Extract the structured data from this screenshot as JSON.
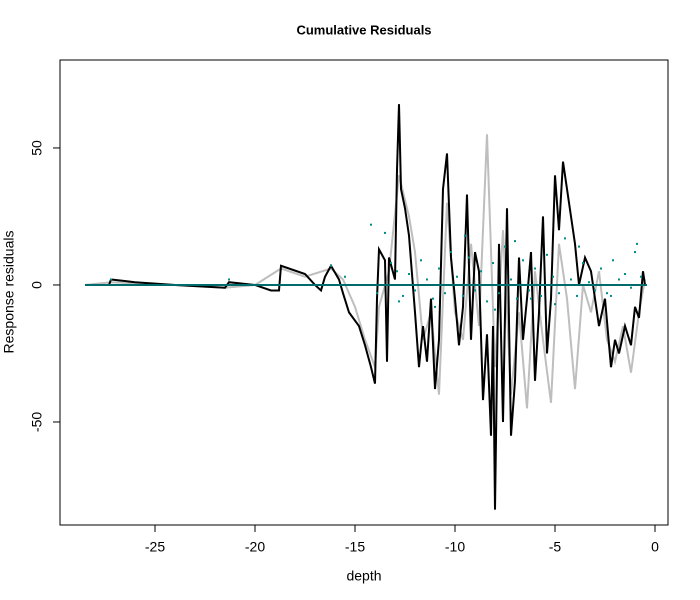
{
  "chart_data": {
    "type": "line",
    "title": "Cumulative Residuals",
    "x_label": "depth",
    "y_label": "Response  residuals",
    "xlim": [
      -29.75,
      0.65
    ],
    "ylim": [
      -87.6,
      82.1
    ],
    "xticks": [
      -25,
      -20,
      -15,
      -10,
      -5,
      0
    ],
    "yticks": [
      -50,
      0,
      50
    ],
    "hline": 0,
    "hline_color": "#006b6b",
    "series": [
      {
        "style": "line",
        "color": "#bebebe",
        "x": [
          -28.5,
          -27.2,
          -24,
          -21.5,
          -20,
          -18.7,
          -17.5,
          -16.2,
          -15.6,
          -15,
          -14.5,
          -14,
          -13.8,
          -13.3,
          -12.8,
          -12.3,
          -12,
          -11.6,
          -11.2,
          -10.8,
          -10.4,
          -10,
          -9.6,
          -9.2,
          -8.8,
          -8.4,
          -8,
          -7.6,
          -7.2,
          -6.8,
          -6.4,
          -6,
          -5.6,
          -5.2,
          -4.8,
          -4.4,
          -4,
          -3.6,
          -3.2,
          -2.8,
          -2.4,
          -2,
          -1.6,
          -1.2,
          -0.8,
          -0.5
        ],
        "values": [
          0,
          1,
          0,
          -1,
          0,
          6,
          3,
          6,
          2,
          -8,
          -20,
          -30,
          -8,
          5,
          40,
          25,
          12,
          -20,
          -10,
          -40,
          30,
          -10,
          -20,
          15,
          -15,
          55,
          -30,
          20,
          -40,
          -10,
          -45,
          5,
          -20,
          -43,
          15,
          -5,
          -38,
          0,
          -10,
          5,
          -20,
          -28,
          -15,
          -32,
          -10,
          2
        ]
      },
      {
        "style": "line",
        "color": "#000000",
        "x": [
          -28.5,
          -27.3,
          -27.2,
          -26,
          -24,
          -21.5,
          -21.3,
          -20,
          -19.2,
          -18.8,
          -18.7,
          -17.5,
          -17,
          -16.7,
          -16.5,
          -16.2,
          -15.8,
          -15.6,
          -15.3,
          -14.8,
          -14.5,
          -14.2,
          -14,
          -13.9,
          -13.8,
          -13.5,
          -13.4,
          -13.3,
          -13,
          -12.9,
          -12.8,
          -12.7,
          -12.5,
          -12.3,
          -12,
          -11.8,
          -11.6,
          -11.4,
          -11.2,
          -11,
          -10.8,
          -10.6,
          -10.4,
          -10.2,
          -10,
          -9.8,
          -9.6,
          -9.4,
          -9.2,
          -9,
          -8.8,
          -8.6,
          -8.4,
          -8.2,
          -8.1,
          -8,
          -7.9,
          -7.8,
          -7.6,
          -7.4,
          -7.2,
          -7,
          -6.8,
          -6.6,
          -6.4,
          -6.2,
          -6,
          -5.8,
          -5.6,
          -5.4,
          -5.2,
          -5,
          -4.8,
          -4.6,
          -4.4,
          -4.2,
          -4,
          -3.8,
          -3.5,
          -3.2,
          -3,
          -2.8,
          -2.5,
          -2.2,
          -2,
          -1.8,
          -1.5,
          -1.2,
          -1,
          -0.8,
          -0.6,
          -0.5
        ],
        "values": [
          0,
          0,
          2,
          1,
          0,
          -1,
          1,
          0,
          -2,
          -2,
          7,
          4,
          0,
          -2,
          3,
          7,
          2,
          -3,
          -10,
          -15,
          -22,
          -30,
          -36,
          -5,
          13,
          9,
          -28,
          10,
          2,
          42,
          66,
          35,
          28,
          18,
          -10,
          -30,
          -15,
          -28,
          -5,
          -38,
          -20,
          35,
          48,
          10,
          -5,
          -22,
          -8,
          33,
          -20,
          12,
          5,
          -42,
          -18,
          -55,
          -15,
          -82,
          -30,
          15,
          -50,
          28,
          -55,
          -35,
          10,
          -20,
          -5,
          12,
          -35,
          -10,
          25,
          -25,
          -5,
          40,
          20,
          45,
          35,
          25,
          15,
          0,
          10,
          5,
          -5,
          -15,
          -5,
          -30,
          -20,
          -25,
          -15,
          -22,
          -8,
          -12,
          5,
          0
        ]
      },
      {
        "style": "points",
        "color": "#008b8b",
        "x": [
          -27.2,
          -21.3,
          -16.2,
          -15.5,
          -14.2,
          -13.9,
          -13.5,
          -13.2,
          -12.9,
          -12.6,
          -12.3,
          -12,
          -11.7,
          -11.4,
          -11.1,
          -10.8,
          -10.5,
          -10.2,
          -9.9,
          -9.6,
          -9.3,
          -9,
          -8.7,
          -8.4,
          -8.1,
          -7.8,
          -7.5,
          -7.2,
          -6.9,
          -6.6,
          -6.3,
          -6,
          -5.7,
          -5.4,
          -5.1,
          -4.8,
          -4.5,
          -4.2,
          -3.9,
          -3.6,
          -3.3,
          -3,
          -2.7,
          -2.4,
          -2.1,
          -1.8,
          -1.5,
          -1.2,
          -0.9,
          -0.7,
          -12.8,
          -11,
          -9.5,
          -8,
          -7,
          -6.2,
          -5,
          -3.8,
          -2.2,
          -1
        ],
        "values": [
          2,
          2,
          7,
          3,
          22,
          -3,
          19,
          8,
          5,
          -4,
          4,
          -2,
          9,
          2,
          -5,
          6,
          -3,
          12,
          3,
          -4,
          10,
          -2,
          5,
          -6,
          8,
          -3,
          14,
          2,
          -5,
          9,
          -2,
          6,
          -4,
          11,
          3,
          -3,
          17,
          2,
          -4,
          8,
          1,
          -2,
          6,
          -3,
          9,
          2,
          4,
          -1,
          15,
          3,
          -6,
          -8,
          18,
          -9,
          16,
          -5,
          -7,
          14,
          -4,
          12
        ]
      }
    ]
  }
}
